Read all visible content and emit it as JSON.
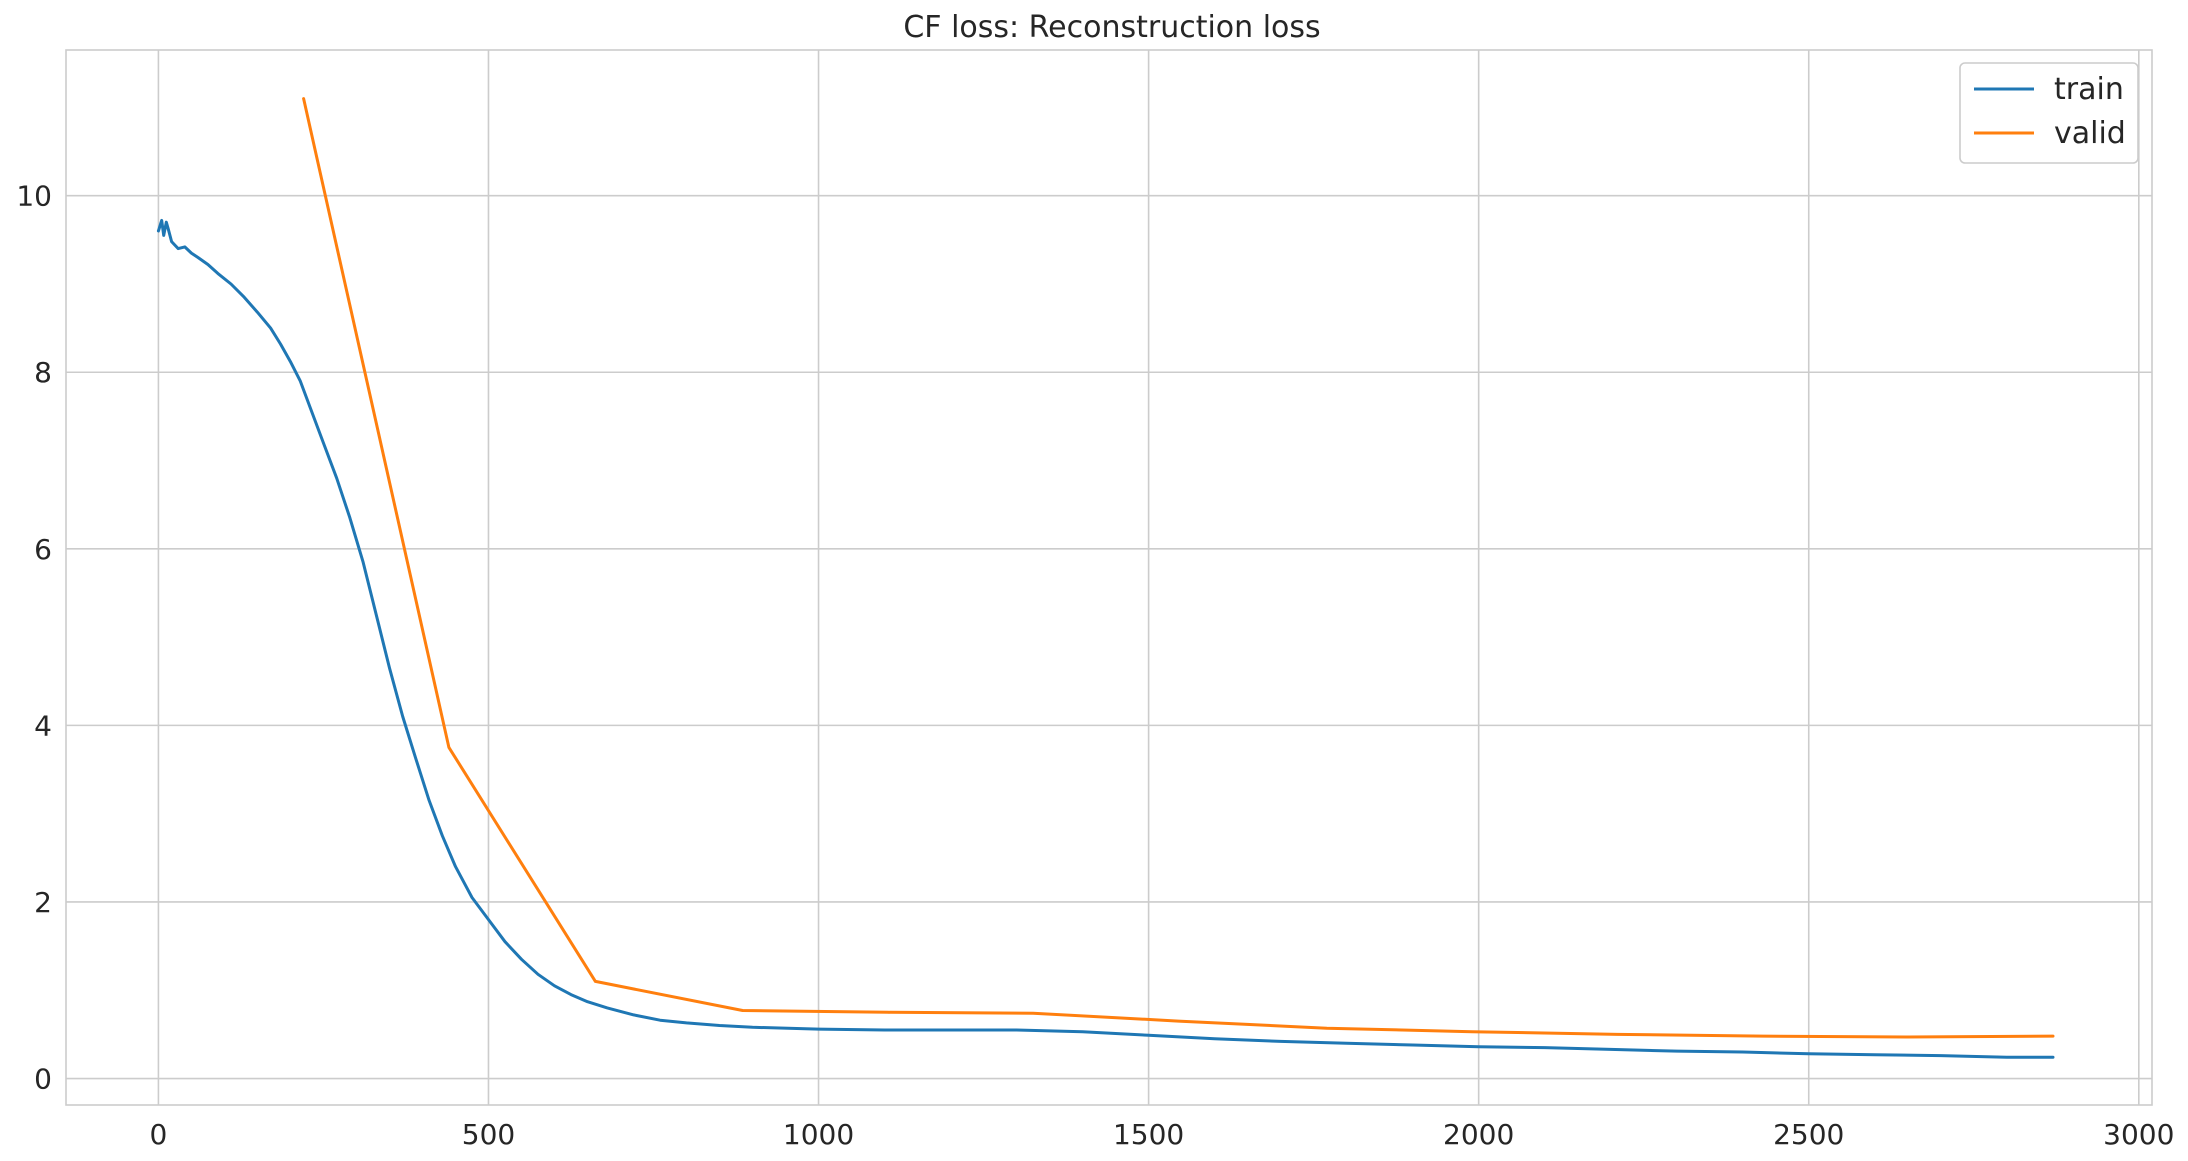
{
  "chart_data": {
    "type": "line",
    "title": "CF loss: Reconstruction loss",
    "xlabel": "",
    "ylabel": "",
    "xlim": [
      -140,
      3020
    ],
    "ylim": [
      -0.3,
      11.65
    ],
    "xticks": [
      0,
      500,
      1000,
      1500,
      2000,
      2500,
      3000
    ],
    "yticks": [
      0,
      2,
      4,
      6,
      8,
      10
    ],
    "grid": true,
    "legend_position": "top-right",
    "series": [
      {
        "name": "train",
        "color": "#1f77b4",
        "points": [
          [
            0,
            9.6
          ],
          [
            5,
            9.72
          ],
          [
            8,
            9.55
          ],
          [
            12,
            9.7
          ],
          [
            15,
            9.62
          ],
          [
            20,
            9.48
          ],
          [
            30,
            9.4
          ],
          [
            40,
            9.42
          ],
          [
            50,
            9.35
          ],
          [
            60,
            9.3
          ],
          [
            75,
            9.22
          ],
          [
            90,
            9.12
          ],
          [
            110,
            9.0
          ],
          [
            130,
            8.85
          ],
          [
            150,
            8.68
          ],
          [
            170,
            8.5
          ],
          [
            185,
            8.32
          ],
          [
            200,
            8.12
          ],
          [
            215,
            7.9
          ],
          [
            230,
            7.6
          ],
          [
            250,
            7.2
          ],
          [
            270,
            6.8
          ],
          [
            290,
            6.35
          ],
          [
            310,
            5.85
          ],
          [
            330,
            5.25
          ],
          [
            350,
            4.65
          ],
          [
            370,
            4.1
          ],
          [
            390,
            3.62
          ],
          [
            410,
            3.15
          ],
          [
            430,
            2.75
          ],
          [
            450,
            2.4
          ],
          [
            475,
            2.05
          ],
          [
            500,
            1.8
          ],
          [
            525,
            1.55
          ],
          [
            550,
            1.35
          ],
          [
            575,
            1.18
          ],
          [
            600,
            1.05
          ],
          [
            625,
            0.95
          ],
          [
            650,
            0.87
          ],
          [
            680,
            0.8
          ],
          [
            720,
            0.72
          ],
          [
            760,
            0.66
          ],
          [
            800,
            0.63
          ],
          [
            850,
            0.6
          ],
          [
            900,
            0.58
          ],
          [
            1000,
            0.56
          ],
          [
            1100,
            0.55
          ],
          [
            1200,
            0.55
          ],
          [
            1300,
            0.55
          ],
          [
            1400,
            0.53
          ],
          [
            1450,
            0.51
          ],
          [
            1500,
            0.49
          ],
          [
            1600,
            0.45
          ],
          [
            1700,
            0.42
          ],
          [
            1800,
            0.4
          ],
          [
            1900,
            0.38
          ],
          [
            2000,
            0.36
          ],
          [
            2100,
            0.35
          ],
          [
            2200,
            0.33
          ],
          [
            2300,
            0.31
          ],
          [
            2400,
            0.3
          ],
          [
            2500,
            0.28
          ],
          [
            2600,
            0.27
          ],
          [
            2700,
            0.26
          ],
          [
            2800,
            0.24
          ],
          [
            2870,
            0.24
          ]
        ]
      },
      {
        "name": "valid",
        "color": "#ff7f0e",
        "points": [
          [
            220,
            11.1
          ],
          [
            440,
            3.75
          ],
          [
            662,
            1.1
          ],
          [
            885,
            0.77
          ],
          [
            1105,
            0.75
          ],
          [
            1325,
            0.74
          ],
          [
            1545,
            0.65
          ],
          [
            1770,
            0.57
          ],
          [
            1990,
            0.53
          ],
          [
            2210,
            0.5
          ],
          [
            2430,
            0.48
          ],
          [
            2650,
            0.47
          ],
          [
            2870,
            0.48
          ]
        ]
      }
    ]
  }
}
